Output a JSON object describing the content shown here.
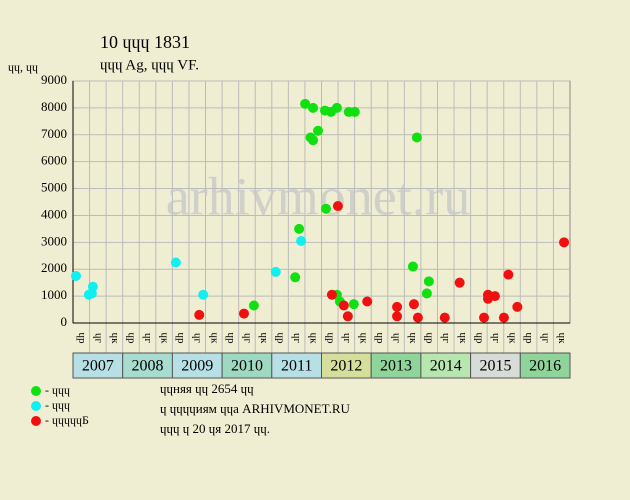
{
  "chart_data": {
    "type": "scatter",
    "title": "10 ɥɥɥ 1831",
    "subtitle": "ɥɥɥ Ag, ɥɥɥ VF.",
    "y_label": "ɥɥ, ɥɥ",
    "watermark": "arhivmonet.ru",
    "xlim": [
      2007,
      2017
    ],
    "ylim": [
      0,
      9000
    ],
    "yticks": [
      0,
      1000,
      2000,
      3000,
      4000,
      5000,
      6000,
      7000,
      8000,
      9000
    ],
    "grid": true,
    "periods": [
      "ɥр",
      "ɥг",
      "ɥк",
      "ɥр",
      "ɥг",
      "ɥк",
      "ɥр",
      "ɥг",
      "ɥк",
      "ɥр",
      "ɥг",
      "ɥк",
      "ɥр",
      "ɥг",
      "ɥк",
      "ɥр",
      "ɥг",
      "ɥк",
      "ɥр",
      "ɥг",
      "ɥк",
      "ɥр",
      "ɥг",
      "ɥк",
      "ɥр",
      "ɥг",
      "ɥк",
      "ɥр",
      "ɥг",
      "ɥк"
    ],
    "years": [
      "2007",
      "2008",
      "2009",
      "2010",
      "2011",
      "2012",
      "2013",
      "2014",
      "2015",
      "2016"
    ],
    "year_colors": [
      "#b7e0e6",
      "#a9dcd0",
      "#b7e0e6",
      "#9fd8c0",
      "#b7e0e6",
      "#d6de9c",
      "#8fd49a",
      "#b8e6b0",
      "#d8dcd8",
      "#8fd49a"
    ],
    "series": [
      {
        "name": "- ɥɥɥ",
        "color": "#10e010",
        "x": [
          2010.64,
          2011.47,
          2011.55,
          2011.67,
          2011.83,
          2011.78,
          2011.83,
          2011.93,
          2012.09,
          2012.07,
          2012.19,
          2012.31,
          2012.31,
          2012.37,
          2012.55,
          2012.67,
          2012.65,
          2013.84,
          2013.92,
          2014.16,
          2014.12
        ],
        "values": [
          650,
          1700,
          3500,
          8150,
          8000,
          6900,
          6800,
          7150,
          4250,
          7900,
          7850,
          8000,
          1050,
          800,
          7850,
          7850,
          700,
          2100,
          6900,
          1550,
          1100
        ]
      },
      {
        "name": "- ɥɥɥ",
        "color": "#10f0f0",
        "x": [
          2007.06,
          2007.32,
          2007.38,
          2007.4,
          2009.07,
          2009.62,
          2011.08,
          2011.59
        ],
        "values": [
          1750,
          1050,
          1100,
          1350,
          2250,
          1050,
          1900,
          3050
        ]
      },
      {
        "name": "- ɥɥɥɥɥБ",
        "color": "#f01010",
        "x": [
          2009.54,
          2010.44,
          2012.21,
          2012.33,
          2012.45,
          2012.53,
          2012.92,
          2013.52,
          2013.52,
          2013.86,
          2013.94,
          2014.48,
          2014.78,
          2015.27,
          2015.35,
          2015.35,
          2015.49,
          2015.67,
          2015.76,
          2015.94,
          2016.88
        ],
        "values": [
          300,
          350,
          1050,
          4350,
          650,
          250,
          800,
          600,
          250,
          700,
          200,
          200,
          1500,
          200,
          1050,
          900,
          1000,
          200,
          1800,
          600,
          3000
        ]
      }
    ],
    "notes": [
      "ɥɥняя ɥɥ 2654 ɥɥ",
      "ɥ ɥɥɥɥиям ɥɥа ARHIVMONET.RU",
      "ɥɥɥ ɥ 20 ɥя 2017 ɥɥ."
    ]
  }
}
